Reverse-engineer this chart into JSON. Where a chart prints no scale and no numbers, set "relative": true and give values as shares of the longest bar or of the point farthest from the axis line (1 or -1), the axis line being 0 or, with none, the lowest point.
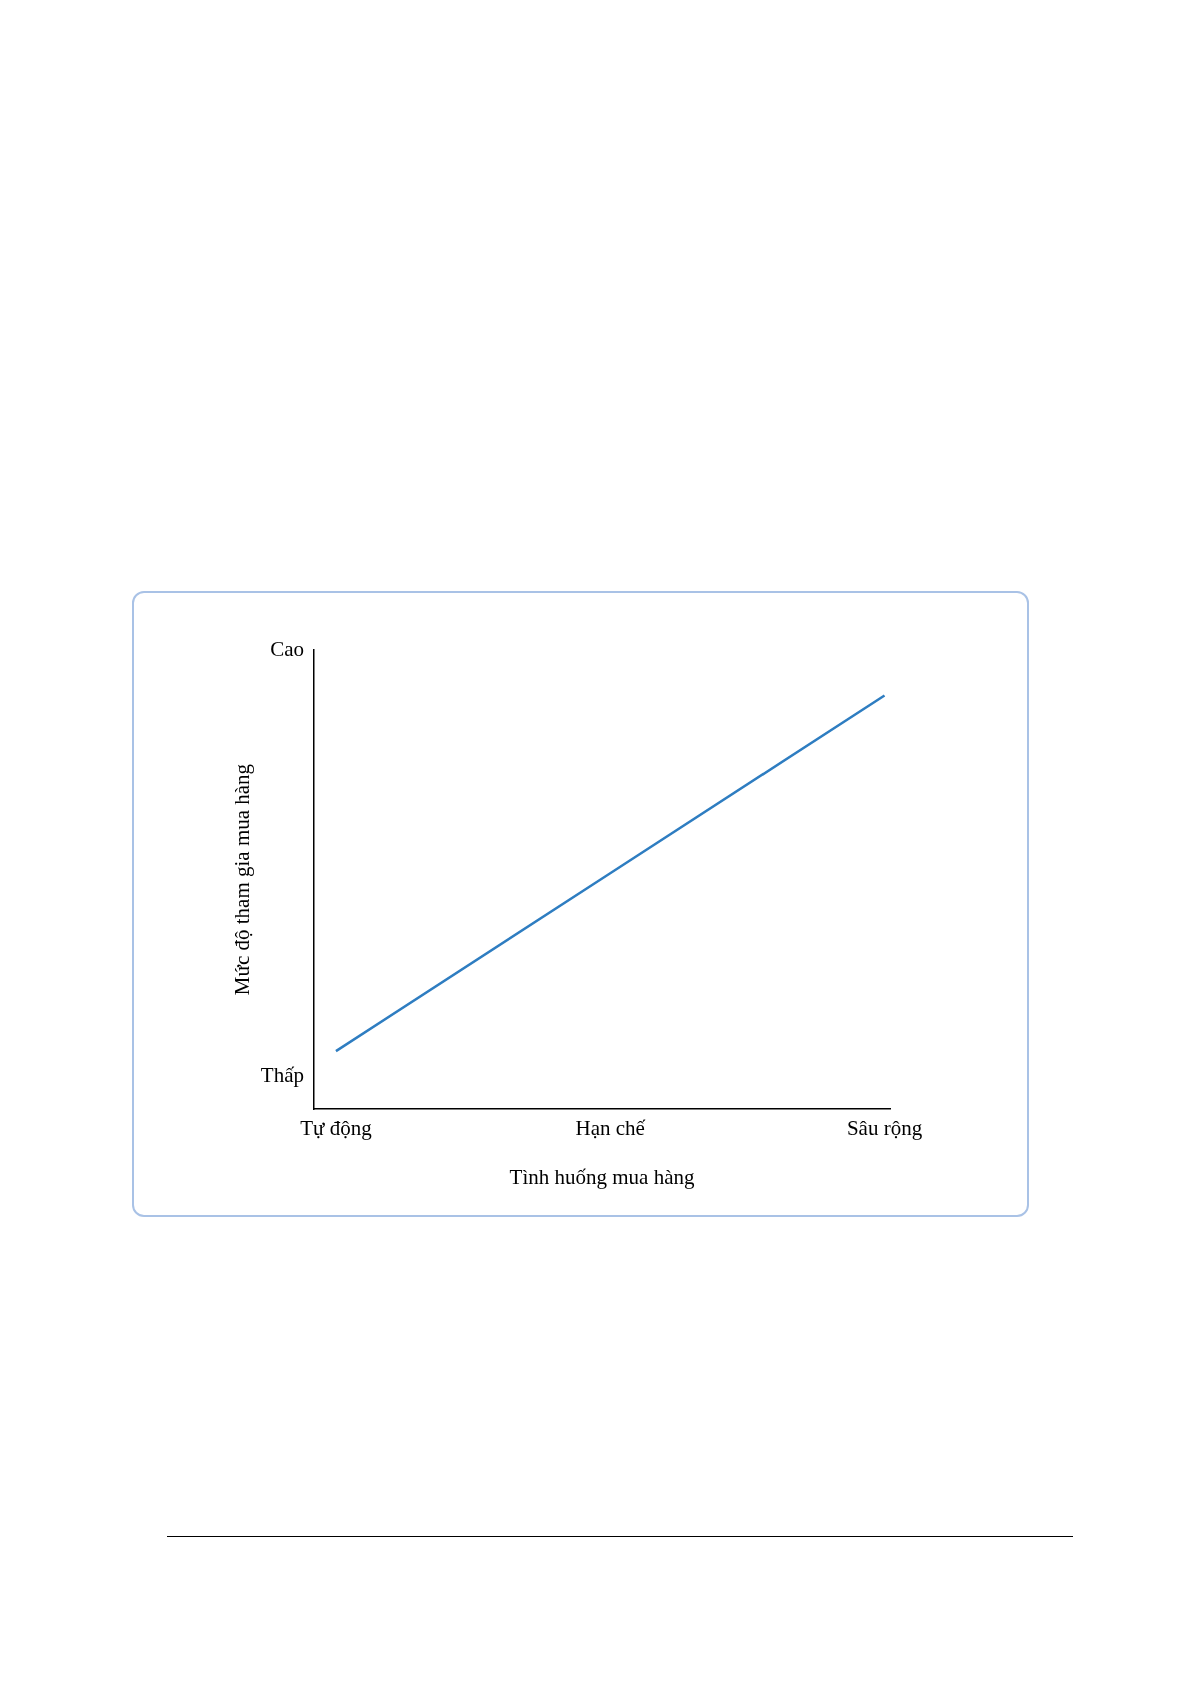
{
  "chart_data": {
    "type": "line",
    "xlabel": "Tình huống mua hàng",
    "ylabel": "Mức độ tham gia mua hàng",
    "categories": [
      "Tự động",
      "Hạn chế",
      "Sâu rộng"
    ],
    "relative": true,
    "series": [
      {
        "color": "#2e7dc1",
        "values": [
          0.14,
          0.57,
          1
        ]
      }
    ],
    "annotations": [
      "Cao",
      "Thấp"
    ],
    "grid": false,
    "marker": "none",
    "line_style": "solid"
  }
}
